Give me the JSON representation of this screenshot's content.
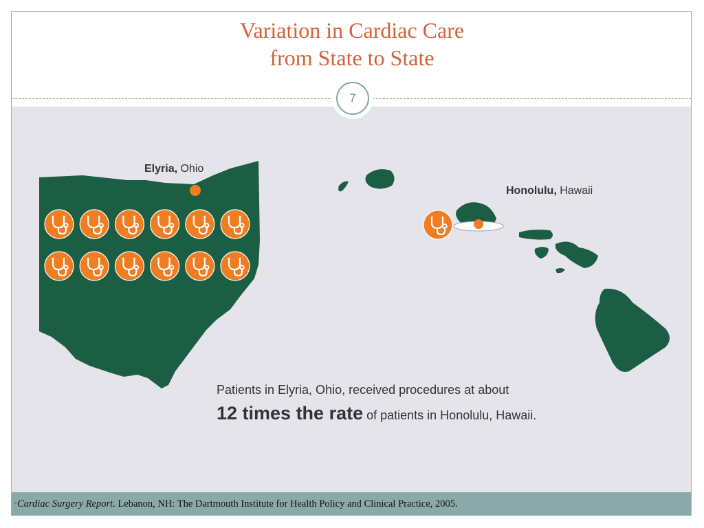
{
  "slide": {
    "title_line1": "Variation in Cardiac Care",
    "title_line2": "from State to State",
    "page_number": "7"
  },
  "map": {
    "ohio_label_city": "Elyria,",
    "ohio_label_state": " Ohio",
    "hawaii_label_city": "Honolulu,",
    "hawaii_label_state": " Hawaii",
    "ohio_icon_count": 12,
    "hawaii_icon_count": 1,
    "colors": {
      "land": "#1b5e44",
      "marker": "#f07d22",
      "background": "#e4e4ea"
    },
    "icon": "stethoscope-icon"
  },
  "caption": {
    "line1": "Patients in Elyria, Ohio, received procedures at about",
    "emphasis": "12 times the rate",
    "rest": " of patients in Honolulu, Hawaii."
  },
  "footer": {
    "bullet": "•",
    "source_title": "Cardiac Surgery Report",
    "source_rest": ". Lebanon, NH: The Dartmouth Institute for Health Policy and Clinical Practice, 2005."
  }
}
